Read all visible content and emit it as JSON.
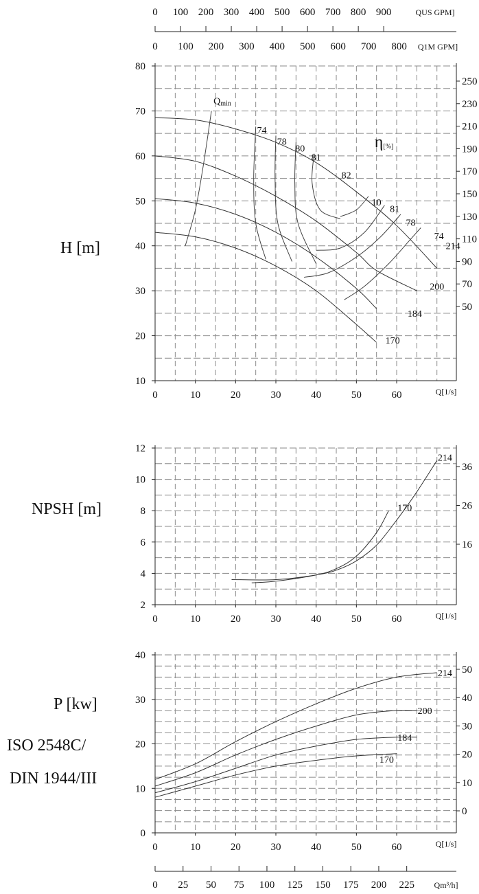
{
  "top_axes": {
    "us_gpm": {
      "unit": "QUS GPM]",
      "ticks": [
        "0",
        "100",
        "200",
        "300",
        "400",
        "500",
        "600",
        "700",
        "800",
        "900"
      ],
      "values": [
        0,
        100,
        200,
        300,
        400,
        500,
        600,
        700,
        800,
        900
      ]
    },
    "im_gpm": {
      "unit": "Q1M GPM]",
      "ticks": [
        "0",
        "100",
        "200",
        "300",
        "400",
        "500",
        "600",
        "700",
        "800"
      ],
      "values": [
        0,
        100,
        200,
        300,
        400,
        500,
        600,
        700,
        800
      ]
    }
  },
  "bottom_axis": {
    "unit": "Qm³/h]",
    "ticks": [
      "0",
      "25",
      "50",
      "75",
      "100",
      "125",
      "150",
      "175",
      "200",
      "225"
    ],
    "values": [
      0,
      25,
      50,
      75,
      100,
      125,
      150,
      175,
      200,
      225
    ]
  },
  "side_labels": {
    "head": "H [m]",
    "npsh": "NPSH [m]",
    "power": "P [kw]",
    "standard_line1": "ISO 2548C/",
    "standard_line2": "DIN 1944/III"
  },
  "chart_data": [
    {
      "type": "line",
      "id": "head",
      "ylabel": "H [m]",
      "xlabel": "Q[1/s]",
      "xlim": [
        0,
        70
      ],
      "ylim": [
        10,
        80
      ],
      "x_ticks": [
        0,
        10,
        20,
        30,
        40,
        50,
        60
      ],
      "y_ticks": [
        10,
        20,
        30,
        40,
        50,
        60,
        70,
        80
      ],
      "right_ticks": [
        "250",
        "230",
        "210",
        "190",
        "170",
        "150",
        "130",
        "110",
        "90",
        "70",
        "50"
      ],
      "qmin_label": "Q",
      "qmin_sub": "min",
      "eta_label": "η",
      "eta_unit": "[%]",
      "series": [
        {
          "name": "214",
          "x": [
            0,
            10,
            20,
            30,
            40,
            50,
            60,
            70
          ],
          "y": [
            68.5,
            68,
            66,
            63,
            58.5,
            52,
            44.5,
            35
          ]
        },
        {
          "name": "200",
          "x": [
            0,
            10,
            20,
            30,
            40,
            50,
            55,
            65
          ],
          "y": [
            60,
            58.8,
            55.5,
            51,
            45.5,
            38.5,
            34.5,
            30
          ]
        },
        {
          "name": "184",
          "x": [
            0,
            10,
            20,
            30,
            40,
            50,
            55
          ],
          "y": [
            50.5,
            49.5,
            47,
            43,
            37.5,
            30.5,
            26
          ]
        },
        {
          "name": "170",
          "x": [
            0,
            10,
            20,
            30,
            40,
            50,
            55
          ],
          "y": [
            43,
            42,
            39.5,
            35.5,
            30,
            22.5,
            18.5
          ]
        }
      ],
      "efficiency_labels": [
        {
          "label": "74",
          "x": 26.5,
          "y": 65
        },
        {
          "label": "78",
          "x": 31.5,
          "y": 62.5
        },
        {
          "label": "80",
          "x": 36,
          "y": 61
        },
        {
          "label": "81",
          "x": 40,
          "y": 59
        },
        {
          "label": "82",
          "x": 47.5,
          "y": 55
        },
        {
          "label": "10",
          "x": 55,
          "y": 49
        },
        {
          "label": "81",
          "x": 59.5,
          "y": 47.5
        },
        {
          "label": "78",
          "x": 63.5,
          "y": 44.5
        },
        {
          "label": "74",
          "x": 70.5,
          "y": 41.5
        }
      ],
      "curve_labels": [
        {
          "label": "214",
          "x": 74,
          "y": 40
        },
        {
          "label": "200",
          "x": 70,
          "y": 31
        },
        {
          "label": "184",
          "x": 64.5,
          "y": 25
        },
        {
          "label": "170",
          "x": 59,
          "y": 19
        }
      ]
    },
    {
      "type": "line",
      "id": "npsh",
      "ylabel": "NPSH [m]",
      "xlabel": "Q[1/s]",
      "xlim": [
        0,
        70
      ],
      "ylim": [
        2,
        12
      ],
      "x_ticks": [
        0,
        10,
        20,
        30,
        40,
        50,
        60
      ],
      "y_ticks": [
        2,
        4,
        6,
        8,
        10,
        12
      ],
      "right_ticks": [
        "36",
        "26",
        "16"
      ],
      "series": [
        {
          "name": "214",
          "x": [
            19,
            30,
            40,
            45,
            50,
            55,
            60,
            65,
            70
          ],
          "y": [
            3.6,
            3.6,
            3.9,
            4.2,
            4.8,
            5.8,
            7.4,
            9.2,
            11.2
          ]
        },
        {
          "name": "170",
          "x": [
            24,
            30,
            40,
            45,
            50,
            55,
            58
          ],
          "y": [
            3.4,
            3.5,
            3.9,
            4.3,
            5.1,
            6.6,
            8
          ]
        }
      ],
      "curve_labels": [
        {
          "label": "214",
          "x": 72,
          "y": 11.4
        },
        {
          "label": "170",
          "x": 62,
          "y": 8.2
        }
      ]
    },
    {
      "type": "line",
      "id": "power",
      "ylabel": "P [kw]",
      "xlabel": "Q[1/s]",
      "xlim": [
        0,
        70
      ],
      "ylim": [
        0,
        40
      ],
      "x_ticks": [
        0,
        10,
        20,
        30,
        40,
        50,
        60
      ],
      "y_ticks": [
        0,
        10,
        20,
        30,
        40
      ],
      "right_ticks": [
        "50",
        "40",
        "30",
        "20",
        "10",
        "0"
      ],
      "series": [
        {
          "name": "214",
          "x": [
            0,
            10,
            20,
            30,
            40,
            50,
            60,
            70
          ],
          "y": [
            12,
            15.5,
            20.5,
            25,
            29,
            32.5,
            35,
            36
          ]
        },
        {
          "name": "200",
          "x": [
            0,
            10,
            20,
            30,
            40,
            50,
            60,
            65
          ],
          "y": [
            10.5,
            13.5,
            17.5,
            21,
            24,
            26.5,
            27.5,
            27.5
          ]
        },
        {
          "name": "184",
          "x": [
            0,
            10,
            20,
            30,
            40,
            50,
            60,
            65
          ],
          "y": [
            9,
            11.5,
            14.5,
            17.5,
            19.5,
            21,
            21.5,
            21.5
          ]
        },
        {
          "name": "170",
          "x": [
            0,
            10,
            20,
            30,
            40,
            50,
            60
          ],
          "y": [
            8,
            10.5,
            13,
            15,
            16.3,
            17.3,
            17.8
          ]
        }
      ],
      "curve_labels": [
        {
          "label": "214",
          "x": 72,
          "y": 36
        },
        {
          "label": "200",
          "x": 67,
          "y": 27.5
        },
        {
          "label": "184",
          "x": 62,
          "y": 21.5
        },
        {
          "label": "170",
          "x": 57.5,
          "y": 16.5
        }
      ]
    }
  ]
}
